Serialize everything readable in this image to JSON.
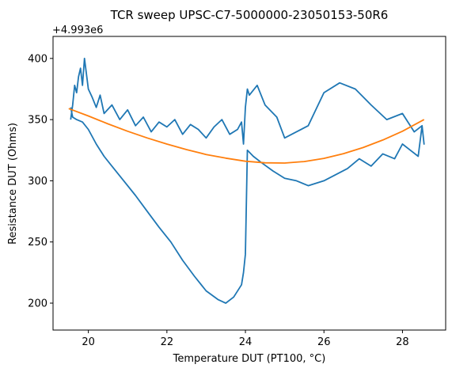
{
  "chart_data": {
    "type": "line",
    "title": "TCR sweep UPSC-C7-5000000-23050153-50R6",
    "xlabel": "Temperature DUT (PT100, °C)",
    "ylabel": "Resistance DUT (Ohms)",
    "y_offset_label": "+4.993e6",
    "xlim": [
      19.1,
      29.1
    ],
    "ylim": [
      178,
      418
    ],
    "x_ticks": [
      20,
      22,
      24,
      26,
      28
    ],
    "y_ticks": [
      200,
      250,
      300,
      350,
      400
    ],
    "grid": false,
    "legend": "none",
    "series": [
      {
        "kind": "measured",
        "color": "#1f77b4",
        "x": [
          19.55,
          19.6,
          19.65,
          19.7,
          19.75,
          19.8,
          19.85,
          19.9,
          20.0,
          20.1,
          20.2,
          20.3,
          20.4,
          20.6,
          20.8,
          21.0,
          21.2,
          21.4,
          21.6,
          21.8,
          22.0,
          22.2,
          22.4,
          22.6,
          22.8,
          23.0,
          23.2,
          23.4,
          23.6,
          23.8,
          23.9,
          23.95,
          24.0,
          24.05,
          24.1,
          24.3,
          24.5,
          24.8,
          25.0,
          25.3,
          25.6,
          26.0,
          26.4,
          26.8,
          27.2,
          27.6,
          28.0,
          28.3,
          28.5,
          28.55,
          28.5,
          28.4,
          28.2,
          28.0,
          27.8,
          27.5,
          27.2,
          26.9,
          26.6,
          26.3,
          26.0,
          25.6,
          25.3,
          25.0,
          24.7,
          24.4,
          24.2,
          24.05,
          24.0,
          23.95,
          23.9,
          23.7,
          23.5,
          23.3,
          23.0,
          22.7,
          22.4,
          22.1,
          21.8,
          21.5,
          21.2,
          20.9,
          20.6,
          20.4,
          20.2,
          20.0,
          19.85,
          19.7,
          19.6,
          19.55
        ],
        "y": [
          350,
          362,
          378,
          372,
          385,
          392,
          378,
          400,
          375,
          368,
          360,
          370,
          355,
          362,
          350,
          358,
          345,
          352,
          340,
          348,
          344,
          350,
          338,
          346,
          342,
          335,
          344,
          350,
          338,
          342,
          348,
          330,
          360,
          375,
          370,
          378,
          362,
          352,
          335,
          340,
          345,
          372,
          380,
          375,
          362,
          350,
          355,
          340,
          345,
          330,
          345,
          320,
          325,
          330,
          318,
          322,
          312,
          318,
          310,
          305,
          300,
          296,
          300,
          302,
          308,
          315,
          320,
          325,
          240,
          225,
          215,
          205,
          200,
          203,
          210,
          222,
          235,
          250,
          262,
          275,
          288,
          300,
          312,
          320,
          330,
          342,
          348,
          350,
          352,
          360
        ]
      },
      {
        "kind": "fit",
        "color": "#ff7f0e",
        "x": [
          19.5,
          20.0,
          20.5,
          21.0,
          21.5,
          22.0,
          22.5,
          23.0,
          23.5,
          24.0,
          24.5,
          25.0,
          25.5,
          26.0,
          26.5,
          27.0,
          27.5,
          28.0,
          28.55
        ],
        "y": [
          359,
          353,
          346.5,
          340.5,
          335,
          330,
          325.5,
          321.5,
          318.5,
          316,
          314.7,
          314.5,
          315.7,
          318.3,
          322.2,
          327.2,
          333.3,
          340.5,
          350
        ]
      }
    ]
  }
}
